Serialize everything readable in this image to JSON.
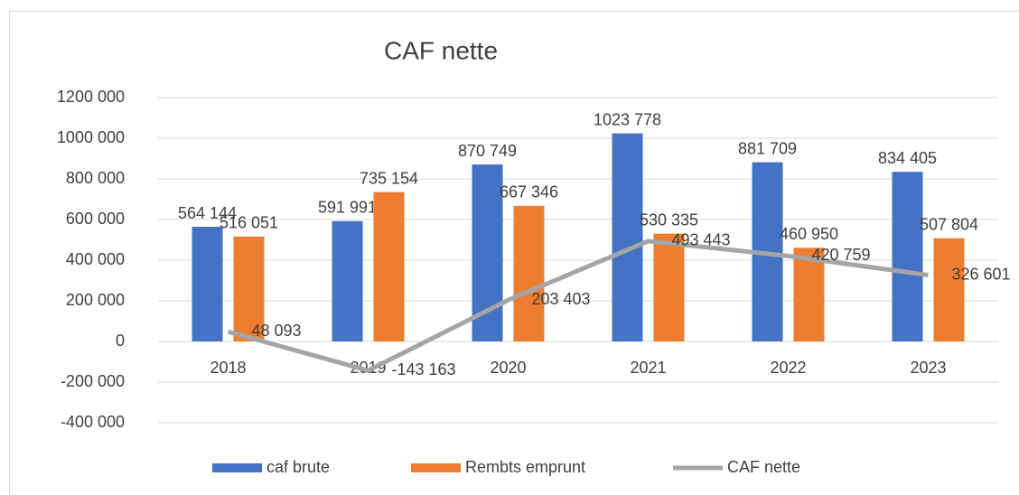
{
  "chart_data": {
    "type": "bar",
    "title": "CAF nette",
    "categories": [
      "2018",
      "2019",
      "2020",
      "2021",
      "2022",
      "2023"
    ],
    "series": [
      {
        "name": "caf brute",
        "color": "#4472c4",
        "type": "bar",
        "values": [
          564144,
          591991,
          870749,
          1023778,
          881709,
          834405
        ],
        "value_labels": [
          "564 144",
          "591 991",
          "870 749",
          "1023 778",
          "881 709",
          "834 405"
        ]
      },
      {
        "name": "Rembts emprunt",
        "color": "#ed7d31",
        "type": "bar",
        "values": [
          516051,
          735154,
          667346,
          530335,
          460950,
          507804
        ],
        "value_labels": [
          "516 051",
          "735 154",
          "667 346",
          "530 335",
          "460 950",
          "507 804"
        ]
      },
      {
        "name": "CAF nette",
        "color": "#a5a5a5",
        "type": "line",
        "values": [
          48093,
          -143163,
          203403,
          493443,
          420759,
          326601
        ],
        "value_labels": [
          "48 093",
          "-143 163",
          "203 403",
          "493 443",
          "420 759",
          "326 601"
        ]
      }
    ],
    "ylim": [
      -400000,
      1200000
    ],
    "yticks": [
      {
        "value": -400000,
        "label": "-400 000"
      },
      {
        "value": -200000,
        "label": "-200 000"
      },
      0,
      {
        "value": 200000,
        "label": "200 000"
      },
      {
        "value": 400000,
        "label": "400 000"
      },
      {
        "value": 600000,
        "label": "600 000"
      },
      {
        "value": 800000,
        "label": "800 000"
      },
      {
        "value": 1000000,
        "label": "1000 000"
      },
      {
        "value": 1200000,
        "label": "1200 000"
      }
    ],
    "grid": true,
    "legend": "bottom"
  }
}
